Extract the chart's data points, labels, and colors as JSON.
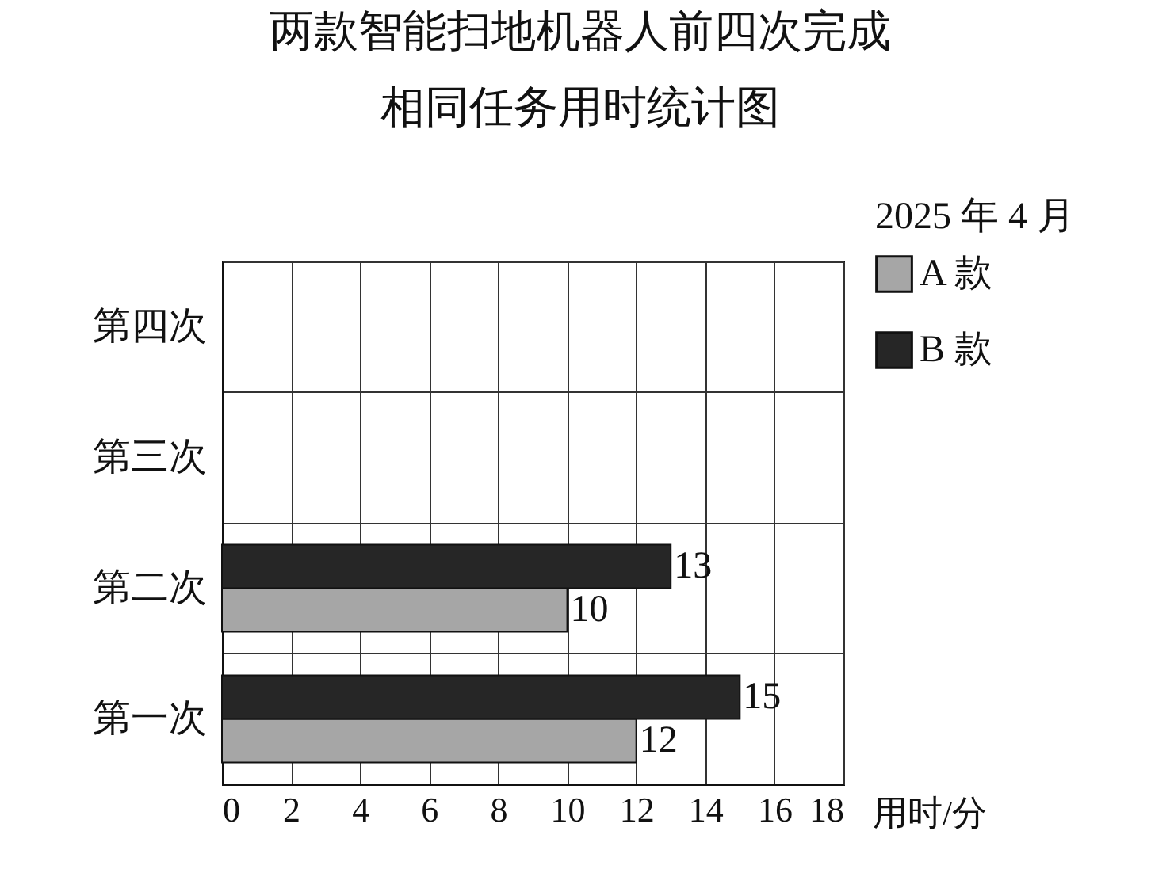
{
  "chart_data": {
    "type": "bar",
    "orientation": "horizontal",
    "title": "两款智能扫地机器人前四次完成相同任务用时统计图",
    "subtitle": "2025 年 4 月",
    "xlabel": "用时/分",
    "categories": [
      "第四次",
      "第三次",
      "第二次",
      "第一次"
    ],
    "series": [
      {
        "name": "A 款",
        "color": "#a6a6a6",
        "values": [
          null,
          null,
          10,
          12
        ]
      },
      {
        "name": "B 款",
        "color": "#262626",
        "values": [
          null,
          null,
          13,
          15
        ]
      }
    ],
    "xlim": [
      0,
      18
    ],
    "xticks": [
      0,
      2,
      4,
      6,
      8,
      10,
      12,
      14,
      16,
      18
    ],
    "grid": true,
    "legend": "top right",
    "data_labels": true
  }
}
